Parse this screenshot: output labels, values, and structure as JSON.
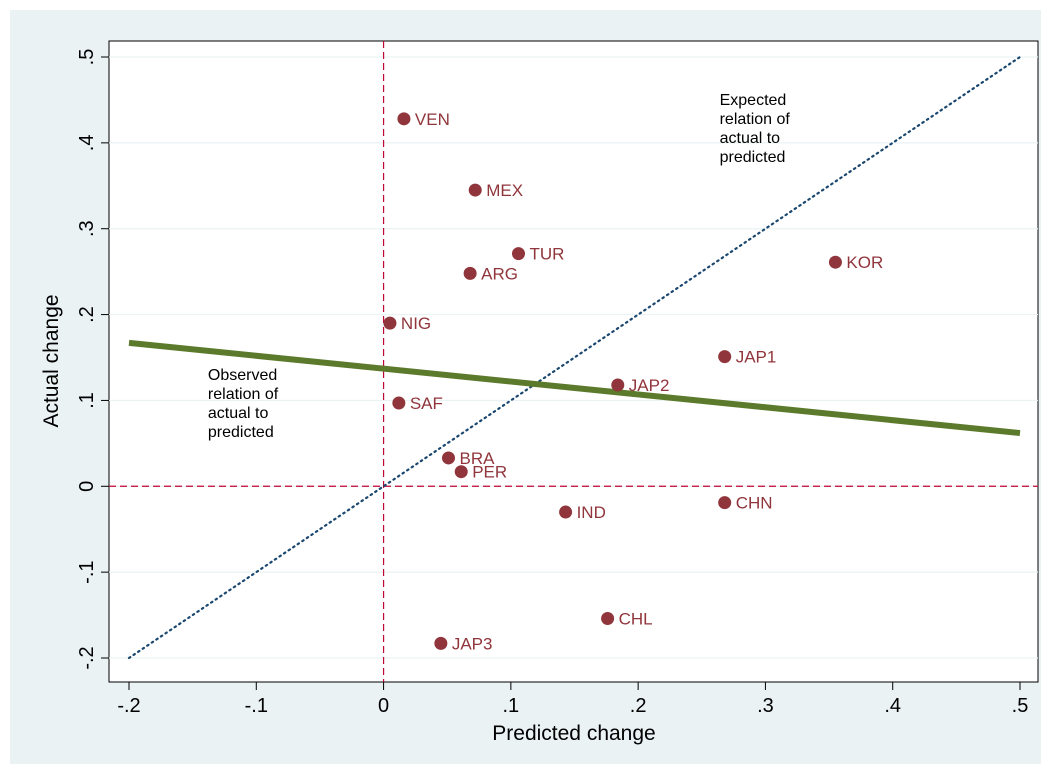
{
  "chart_data": {
    "type": "scatter",
    "xlabel": "Predicted change",
    "ylabel": "Actual change",
    "xlim": [
      -0.2,
      0.5
    ],
    "ylim": [
      -0.2,
      0.5
    ],
    "x_ticks": [
      -0.2,
      -0.1,
      0,
      0.1,
      0.2,
      0.3,
      0.4,
      0.5
    ],
    "x_tick_labels": [
      "-.2",
      "-.1",
      "0",
      ".1",
      ".2",
      ".3",
      ".4",
      ".5"
    ],
    "y_ticks": [
      -0.2,
      -0.1,
      0,
      0.1,
      0.2,
      0.3,
      0.4,
      0.5
    ],
    "y_tick_labels": [
      "-.2",
      "-.1",
      "0",
      ".1",
      ".2",
      ".3",
      ".4",
      ".5"
    ],
    "grid": "horizontal",
    "points": [
      {
        "label": "VEN",
        "x": 0.016,
        "y": 0.428
      },
      {
        "label": "MEX",
        "x": 0.072,
        "y": 0.345
      },
      {
        "label": "TUR",
        "x": 0.106,
        "y": 0.271
      },
      {
        "label": "ARG",
        "x": 0.068,
        "y": 0.248
      },
      {
        "label": "KOR",
        "x": 0.355,
        "y": 0.261
      },
      {
        "label": "NIG",
        "x": 0.005,
        "y": 0.19
      },
      {
        "label": "JAP1",
        "x": 0.268,
        "y": 0.151
      },
      {
        "label": "JAP2",
        "x": 0.184,
        "y": 0.118
      },
      {
        "label": "SAF",
        "x": 0.012,
        "y": 0.097
      },
      {
        "label": "BRA",
        "x": 0.051,
        "y": 0.033
      },
      {
        "label": "PER",
        "x": 0.061,
        "y": 0.017
      },
      {
        "label": "IND",
        "x": 0.143,
        "y": -0.03
      },
      {
        "label": "CHN",
        "x": 0.268,
        "y": -0.019
      },
      {
        "label": "CHL",
        "x": 0.176,
        "y": -0.154
      },
      {
        "label": "JAP3",
        "x": 0.045,
        "y": -0.183
      }
    ],
    "lines": {
      "observed_fit": {
        "x": [
          -0.2,
          0.5
        ],
        "y": [
          0.167,
          0.062
        ]
      },
      "expected": {
        "x": [
          -0.2,
          0.5
        ],
        "y": [
          -0.2,
          0.5
        ]
      },
      "zero_x": 0,
      "zero_y": 0
    },
    "annotations": [
      {
        "lines": [
          "Expected",
          "relation of",
          "actual to",
          "predicted"
        ],
        "x": 0.264,
        "y": 0.444
      },
      {
        "lines": [
          "Observed",
          "relation of",
          "actual to",
          "predicted"
        ],
        "x": -0.138,
        "y": 0.124
      }
    ],
    "colors": {
      "background": "#eaf2f3",
      "plot_background": "#ffffff",
      "points": "#90353b",
      "fit_line": "#5c7a2b",
      "expected_line": "#1a476f",
      "zero_lines": "#c10534",
      "grid": "#eaf2f3"
    }
  }
}
